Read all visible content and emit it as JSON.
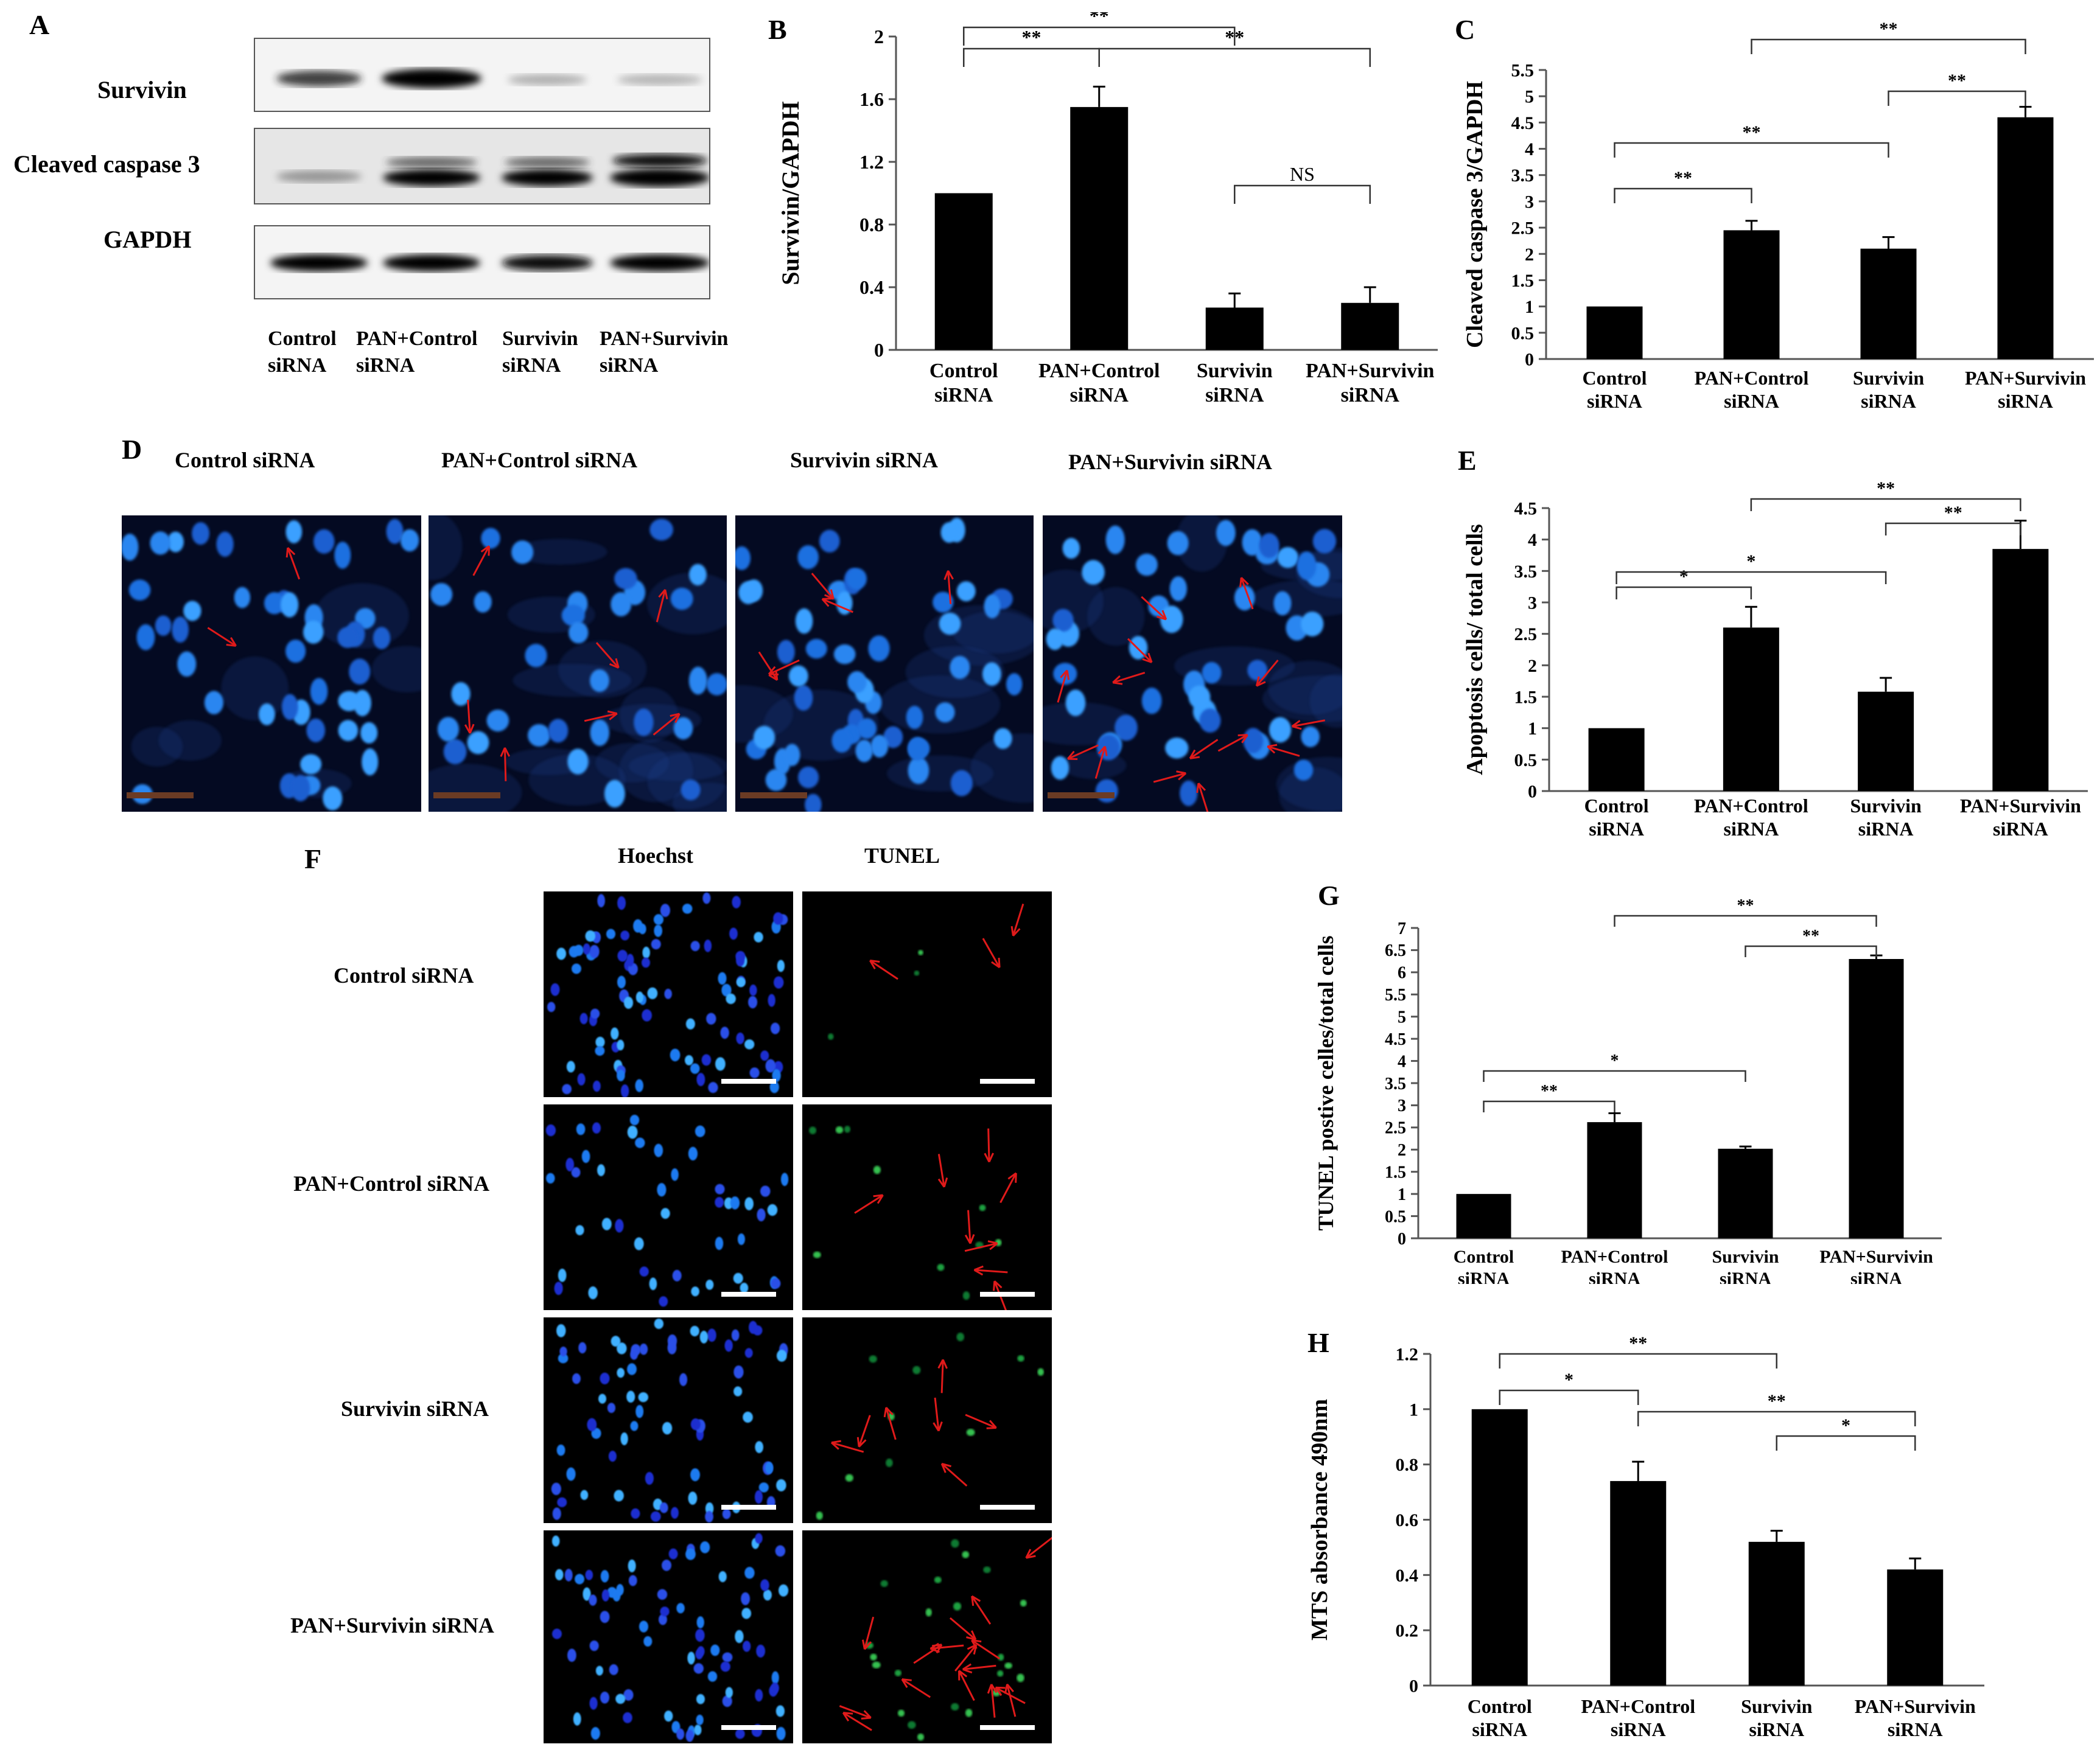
{
  "groups": [
    "Control siRNA",
    "PAN+Control siRNA",
    "Survivin siRNA",
    "PAN+Survivin siRNA"
  ],
  "panel_letters": {
    "a": "A",
    "b": "B",
    "c": "C",
    "d": "D",
    "e": "E",
    "f": "F",
    "g": "G",
    "h": "H"
  },
  "blot": {
    "bands": [
      "Survivin",
      "Cleaved caspase 3",
      "GAPDH"
    ],
    "lanes": [
      [
        "Control",
        "siRNA"
      ],
      [
        "PAN+Control",
        "siRNA"
      ],
      [
        "Survivin",
        "siRNA"
      ],
      [
        "PAN+Survivin",
        "siRNA"
      ]
    ]
  },
  "microscopy_d": {
    "titles": [
      "Control siRNA",
      "PAN+Control siRNA",
      "Survivin siRNA",
      "PAN+Survivin siRNA"
    ]
  },
  "microscopy_f": {
    "column_titles": [
      "Hoechst",
      "TUNEL"
    ],
    "row_labels": [
      "Control siRNA",
      "PAN+Control siRNA",
      "Survivin siRNA",
      "PAN+Survivin siRNA"
    ]
  },
  "chart_data": [
    {
      "id": "B",
      "type": "bar",
      "ylabel": "Survivin/GAPDH",
      "ylim": [
        0,
        2
      ],
      "yticks": [
        "0",
        "0.4",
        "0.8",
        "1.2",
        "1.6",
        "2"
      ],
      "categories": [
        [
          "Control",
          "siRNA"
        ],
        [
          "PAN+Control",
          "siRNA"
        ],
        [
          "Survivin",
          "siRNA"
        ],
        [
          "PAN+Survivin",
          "siRNA"
        ]
      ],
      "values": [
        1.0,
        1.55,
        0.27,
        0.3
      ],
      "errors": [
        0,
        0.13,
        0.09,
        0.1
      ],
      "annotations": [
        {
          "from": 0,
          "to": 1,
          "label": "**"
        },
        {
          "from": 0,
          "to": 2,
          "label": "**"
        },
        {
          "from": 1,
          "to": 3,
          "label": "**"
        },
        {
          "from": 2,
          "to": 3,
          "label": "NS"
        }
      ]
    },
    {
      "id": "C",
      "type": "bar",
      "ylabel": "Cleaved caspase 3/GAPDH",
      "ylim": [
        0,
        5.5
      ],
      "yticks": [
        "0",
        "0.5",
        "1",
        "1.5",
        "2",
        "2.5",
        "3",
        "3.5",
        "4",
        "4.5",
        "5",
        "5.5"
      ],
      "categories": [
        [
          "Control",
          "siRNA"
        ],
        [
          "PAN+Control",
          "siRNA"
        ],
        [
          "Survivin",
          "siRNA"
        ],
        [
          "PAN+Survivin",
          "siRNA"
        ]
      ],
      "values": [
        1.0,
        2.45,
        2.1,
        4.6
      ],
      "errors": [
        0,
        0.18,
        0.22,
        0.2
      ],
      "annotations": [
        {
          "from": 0,
          "to": 1,
          "label": "**"
        },
        {
          "from": 0,
          "to": 2,
          "label": "**"
        },
        {
          "from": 2,
          "to": 3,
          "label": "**"
        },
        {
          "from": 1,
          "to": 3,
          "label": "**"
        }
      ]
    },
    {
      "id": "E",
      "type": "bar",
      "ylabel": "Apoptosis cells/ total cells",
      "ylim": [
        0,
        4.5
      ],
      "yticks": [
        "0",
        "0.5",
        "1",
        "1.5",
        "2",
        "2.5",
        "3",
        "3.5",
        "4",
        "4.5"
      ],
      "categories": [
        [
          "Control",
          "siRNA"
        ],
        [
          "PAN+Control",
          "siRNA"
        ],
        [
          "Survivin",
          "siRNA"
        ],
        [
          "PAN+Survivin",
          "siRNA"
        ]
      ],
      "values": [
        1.0,
        2.6,
        1.58,
        3.85
      ],
      "errors": [
        0,
        0.33,
        0.22,
        0.45
      ],
      "annotations": [
        {
          "from": 0,
          "to": 1,
          "label": "*"
        },
        {
          "from": 0,
          "to": 2,
          "label": "*"
        },
        {
          "from": 2,
          "to": 3,
          "label": "**"
        },
        {
          "from": 1,
          "to": 3,
          "label": "**"
        }
      ]
    },
    {
      "id": "G",
      "type": "bar",
      "ylabel": "TUNEL postive celles/total cells",
      "ylim": [
        0,
        7
      ],
      "yticks": [
        "0",
        "0.5",
        "1",
        "1.5",
        "2",
        "2.5",
        "3",
        "3.5",
        "4",
        "4.5",
        "5",
        "5.5",
        "6",
        "6.5",
        "7"
      ],
      "categories": [
        [
          "Control",
          "siRNA"
        ],
        [
          "PAN+Control",
          "siRNA"
        ],
        [
          "Survivin",
          "siRNA"
        ],
        [
          "PAN+Survivin",
          "siRNA"
        ]
      ],
      "values": [
        1.0,
        2.62,
        2.02,
        6.3
      ],
      "errors": [
        0,
        0.2,
        0.05,
        0.08
      ],
      "annotations": [
        {
          "from": 0,
          "to": 1,
          "label": "**"
        },
        {
          "from": 0,
          "to": 2,
          "label": "*"
        },
        {
          "from": 2,
          "to": 3,
          "label": "**"
        },
        {
          "from": 1,
          "to": 3,
          "label": "**"
        }
      ]
    },
    {
      "id": "H",
      "type": "bar",
      "ylabel": "MTS absorbance 490nm",
      "ylim": [
        0,
        1.2
      ],
      "yticks": [
        "0",
        "0.2",
        "0.4",
        "0.6",
        "0.8",
        "1",
        "1.2"
      ],
      "categories": [
        [
          "Control",
          "siRNA"
        ],
        [
          "PAN+Control",
          "siRNA"
        ],
        [
          "Survivin",
          "siRNA"
        ],
        [
          "PAN+Survivin",
          "siRNA"
        ]
      ],
      "values": [
        1.0,
        0.74,
        0.52,
        0.42
      ],
      "errors": [
        0,
        0.07,
        0.04,
        0.04
      ],
      "annotations": [
        {
          "from": 0,
          "to": 1,
          "label": "*"
        },
        {
          "from": 0,
          "to": 2,
          "label": "**"
        },
        {
          "from": 1,
          "to": 3,
          "label": "**"
        },
        {
          "from": 2,
          "to": 3,
          "label": "*"
        }
      ]
    }
  ]
}
